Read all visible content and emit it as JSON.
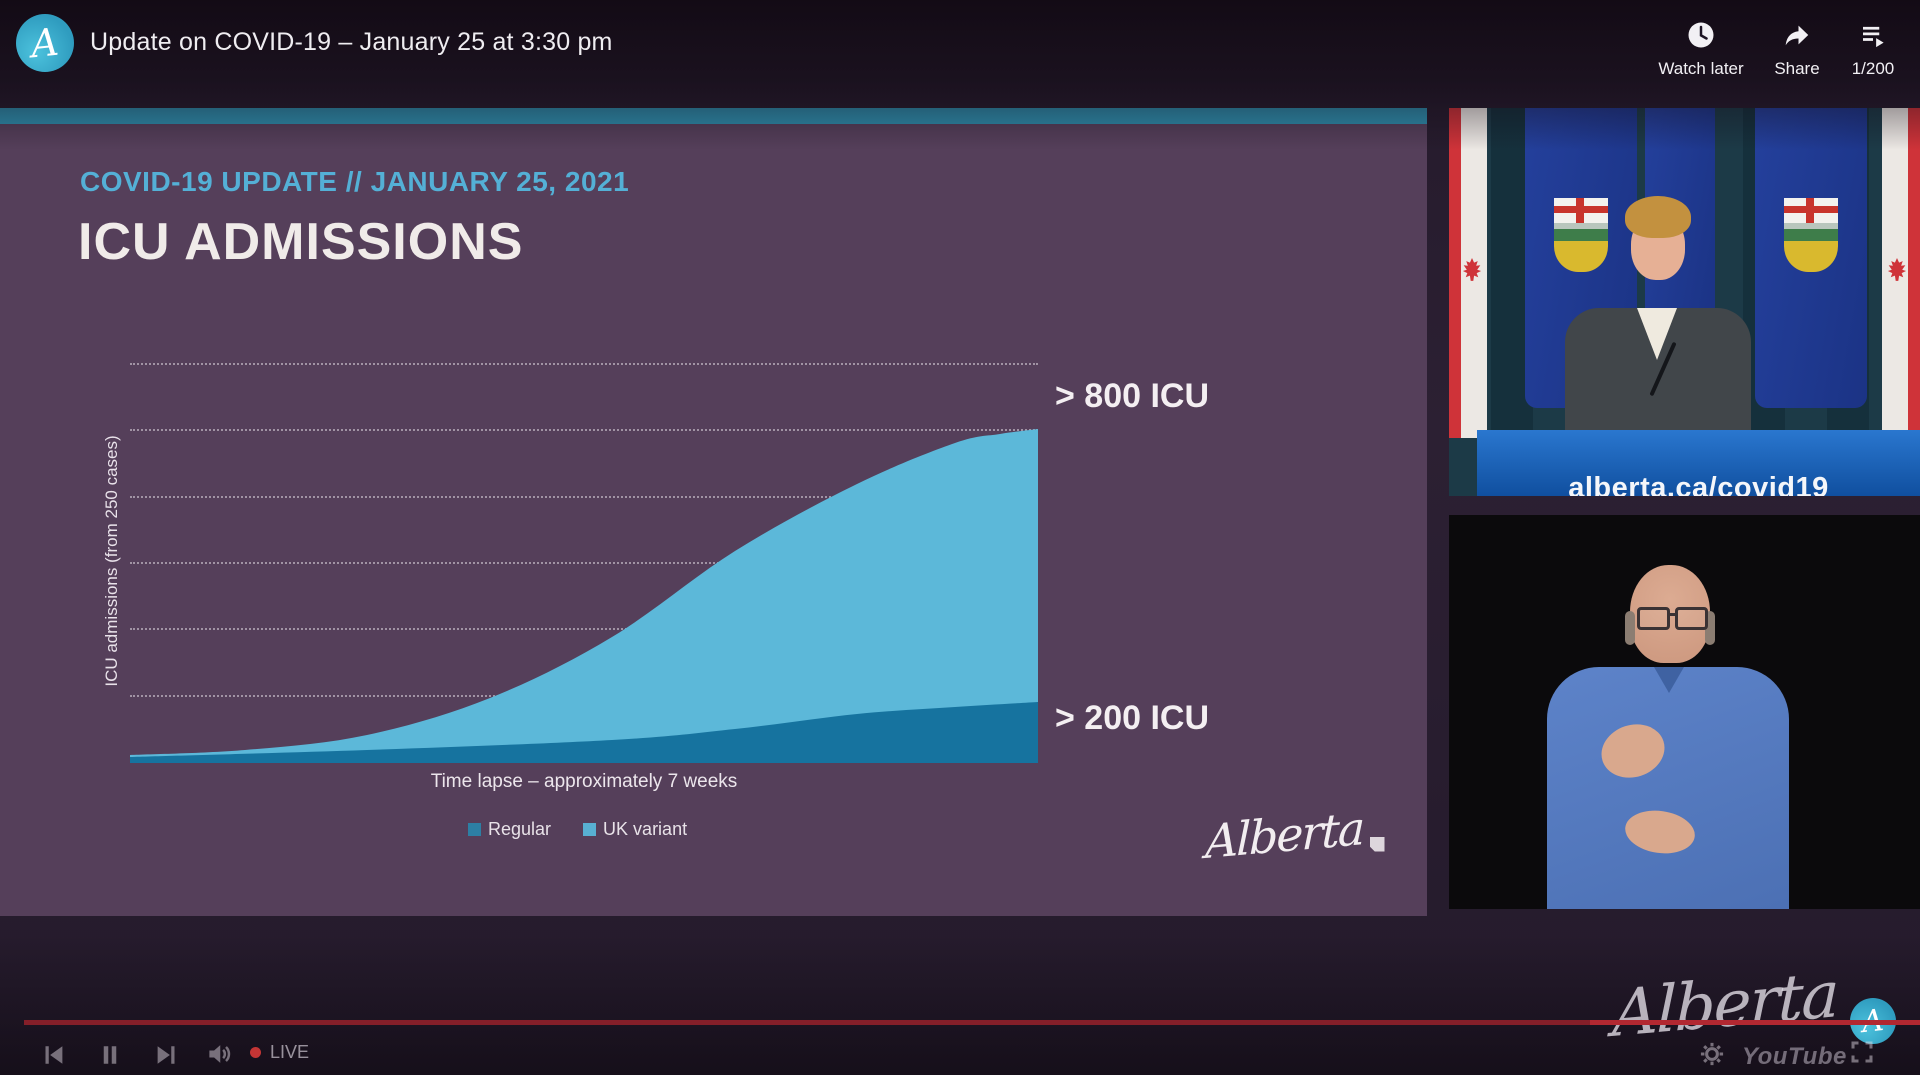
{
  "player": {
    "title": "Update on COVID-19 – January 25 at 3:30 pm",
    "avatar_letter": "A",
    "actions": {
      "watch_later": "Watch later",
      "share": "Share",
      "playlist_index": "1/200"
    },
    "controls": {
      "live_label": "LIVE",
      "live_color": "#c43535",
      "progress_color": "#841f29"
    },
    "watermark": {
      "brand": "Alberta",
      "youtube_label": "YouTube"
    }
  },
  "slide": {
    "kicker": "COVID-19 UPDATE // JANUARY 25, 2021",
    "title": "ICU ADMISSIONS",
    "logo_text": "Alberta",
    "background_color": "#553f5a",
    "accent_bar_color": "#2e8cab",
    "kicker_color": "#54b0d6"
  },
  "video_top": {
    "podium_text": "alberta.ca/covid19",
    "scene": "speaker-at-podium-with-alberta-and-canada-flags"
  },
  "video_bottom": {
    "scene": "sign-language-interpreter-blue-shirt-black-background"
  },
  "chart_data": {
    "type": "area",
    "title": "ICU ADMISSIONS",
    "subtitle": "COVID-19 UPDATE // JANUARY 25, 2021",
    "xlabel": "Time lapse – approximately 7 weeks",
    "ylabel": "ICU admissions (from 250 cases)",
    "x_units": "weeks",
    "x": [
      0,
      1,
      2,
      3,
      4,
      5,
      6,
      7
    ],
    "series": [
      {
        "name": "UK variant",
        "color": "#5cb8d9",
        "values": [
          20,
          45,
          95,
          185,
          330,
          530,
          700,
          830
        ],
        "end_annotation": "> 800 ICU"
      },
      {
        "name": "Regular",
        "color": "#16739f",
        "values": [
          15,
          25,
          40,
          60,
          90,
          130,
          175,
          210
        ],
        "end_annotation": "> 200 ICU"
      }
    ],
    "annotations": [
      "> 800 ICU",
      "> 200 ICU"
    ],
    "legend": [
      {
        "label": "Regular",
        "color": "#2d7fa4"
      },
      {
        "label": "UK variant",
        "color": "#58b0d2"
      }
    ],
    "grid": {
      "style": "dotted-horizontal",
      "count": 7,
      "color": "rgba(245,240,245,0.48)"
    },
    "ylim_note": "y-axis ticks unlabeled; series values estimated from the > 800 ICU and > 200 ICU annotations",
    "render_points": {
      "uk_variant": [
        [
          0,
          0.02
        ],
        [
          0.127,
          0.033
        ],
        [
          0.261,
          0.07
        ],
        [
          0.397,
          0.163
        ],
        [
          0.531,
          0.315
        ],
        [
          0.666,
          0.53
        ],
        [
          0.801,
          0.698
        ],
        [
          0.909,
          0.8
        ],
        [
          0.958,
          0.822
        ],
        [
          1,
          0.835
        ]
      ],
      "regular": [
        [
          0,
          0.015
        ],
        [
          0.261,
          0.033
        ],
        [
          0.531,
          0.058
        ],
        [
          0.666,
          0.085
        ],
        [
          0.801,
          0.123
        ],
        [
          0.909,
          0.14
        ],
        [
          1,
          0.153
        ]
      ]
    }
  }
}
